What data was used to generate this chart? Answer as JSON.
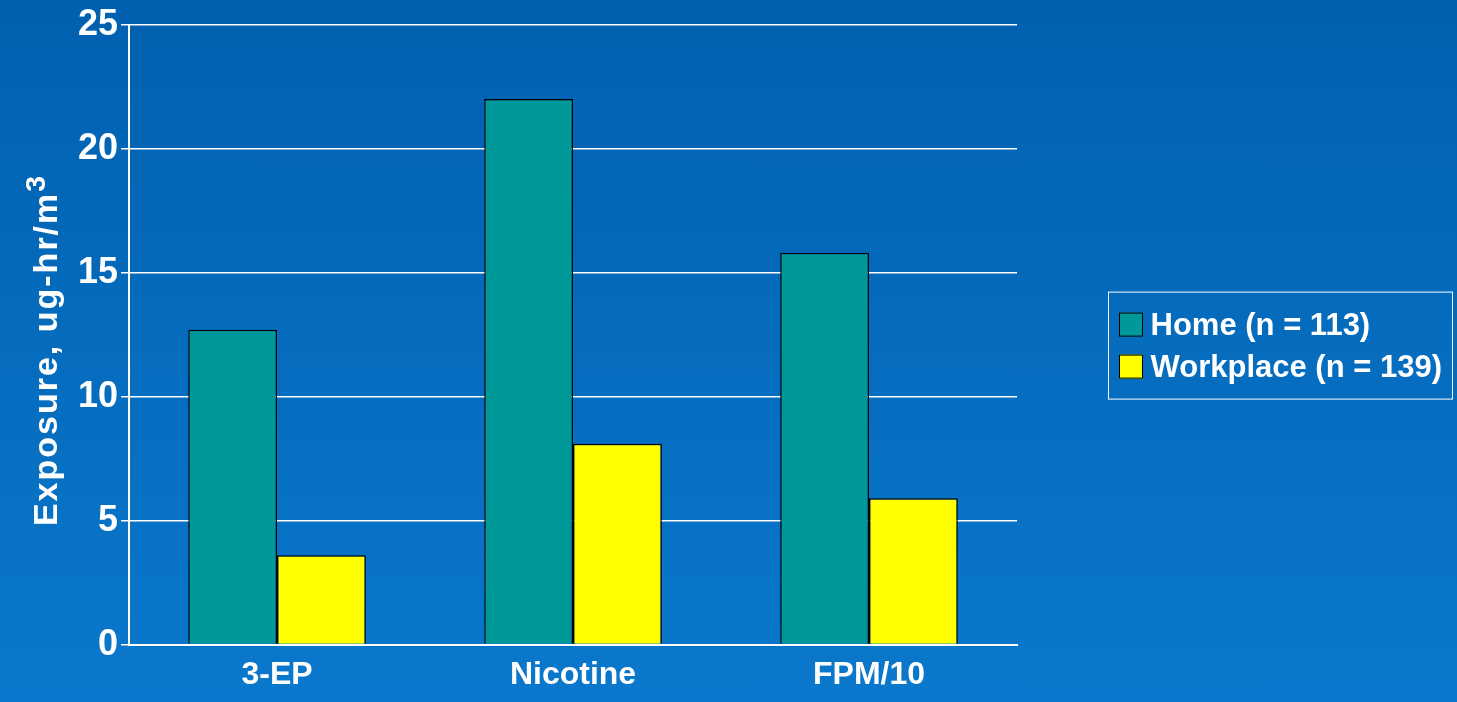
{
  "chart_data": {
    "type": "bar",
    "ylabel": "Exposure, ug-hr/m$^{3}$",
    "categories": [
      "3-EP",
      "Nicotine",
      "FPM/10"
    ],
    "series": [
      {
        "name": "Home (n = 113)",
        "color": "#009999",
        "values": [
          12.7,
          22,
          15.8
        ]
      },
      {
        "name": "Workplace (n = 139)",
        "color": "#ffff00",
        "values": [
          3.6,
          8.1,
          5.9
        ]
      }
    ],
    "ylim": [
      0,
      25
    ],
    "yticks": [
      0,
      5,
      10,
      15,
      20,
      25
    ],
    "grid": "y",
    "legend": "right"
  }
}
